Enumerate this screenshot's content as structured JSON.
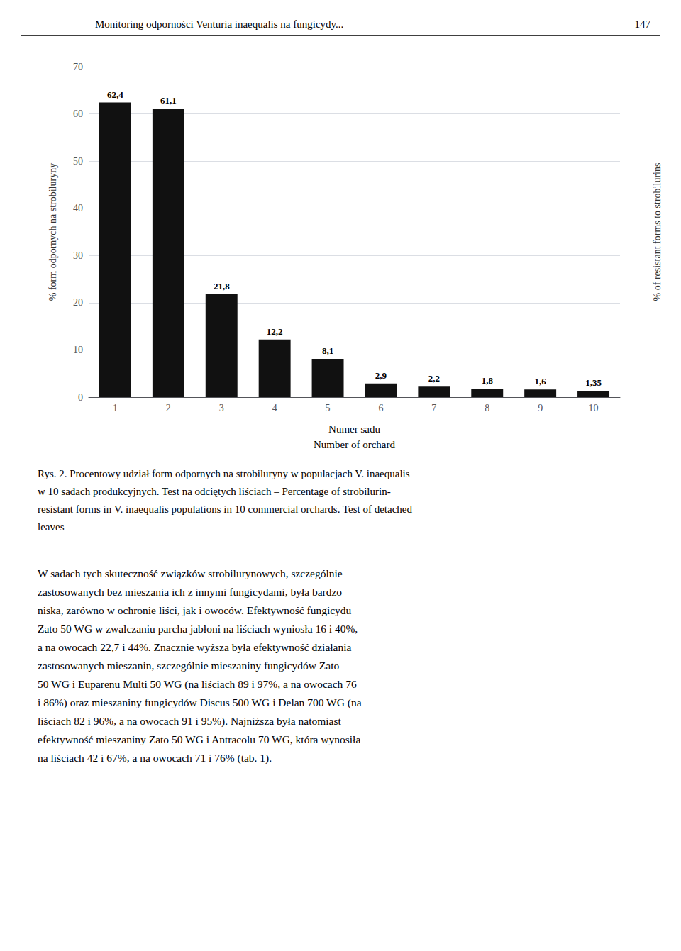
{
  "chart_data": {
    "type": "bar",
    "categories": [
      1,
      2,
      3,
      4,
      5,
      6,
      7,
      8,
      9,
      10
    ],
    "values": [
      62.4,
      61.1,
      21.8,
      12.2,
      8.1,
      2.9,
      2.2,
      1.8,
      1.6,
      1.35
    ],
    "value_labels": [
      "62,4",
      "61,1",
      "21,8",
      "12,2",
      "8,1",
      "2,9",
      "2,2",
      "1,8",
      "1,6",
      "1,35"
    ],
    "data_labels": true,
    "color": "#111111",
    "ylabel": "% form odpornych na strobiluryny",
    "y2label": "% of resistant forms to strobilurins",
    "xlabel": "Numer sadu\nNumber of orchard",
    "ylim": [
      0,
      70
    ],
    "yticks": [
      0,
      10,
      20,
      30,
      40,
      50,
      60,
      70
    ],
    "grid": true,
    "annotations": [
      [
        "Monitoring odporności Venturia inaequalis na fungicydy...",
        "147"
      ],
      [
        "Rys. 2. Procentowy udział form odpornych na strobiluryny w populacjach V. inaequalis",
        "w 10 sadach produkcyjnych. Test na odciętych liściach – Percentage of strobilurin-",
        "resistant forms in V. inaequalis populations in 10 commercial orchards. Test of detached",
        "leaves"
      ],
      [
        "W sadach tych skuteczność związków strobilurynowych, szczególnie",
        "zastosowanych bez mieszania ich z innymi fungicydami, była bardzo",
        "niska, zarówno w ochronie liści, jak i owoców. Efektywność fungicydu",
        "Zato 50 WG w zwalczaniu parcha jabłoni na liściach wyniosła 16 i 40%,",
        "a na owocach 22,7 i 44%. Znacznie wyższa była efektywność działania",
        "zastosowanych mieszanin, szczególnie mieszaniny fungicydów Zato",
        "50 WG i Euparenu Multi 50 WG (na liściach 89 i 97%, a na owocach 76",
        "i 86%) oraz mieszaniny fungicydów Discus 500 WG i Delan 700 WG (na",
        "liściach 82 i 96%, a na owocach 91 i 95%). Najniższa była natomiast",
        "efektywność mieszaniny Zato 50 WG i Antracolu 70 WG, która wynosiła",
        "na liściach 42 i 67%, a na owocach 71 i 76% (tab. 1)."
      ]
    ]
  }
}
